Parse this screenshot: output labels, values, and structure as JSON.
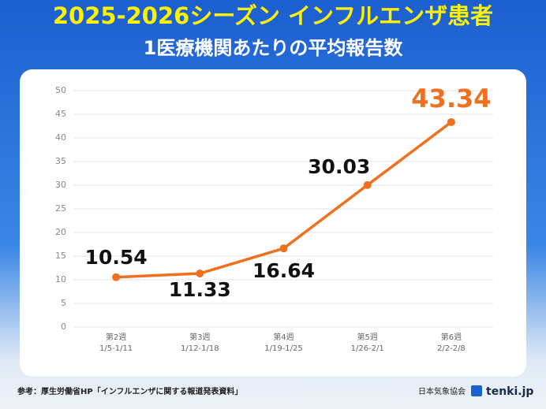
{
  "chart_data": {
    "type": "line",
    "title": "2025-2026シーズン インフルエンザ患者",
    "subtitle": "1医療機関あたりの平均報告数",
    "categories": [
      "第2週",
      "第3週",
      "第4週",
      "第5週",
      "第6週"
    ],
    "category_dates": [
      "1/5-1/11",
      "1/12-1/18",
      "1/19-1/25",
      "1/26-2/1",
      "2/2-2/8"
    ],
    "series": [
      {
        "name": "平均報告数",
        "color": "#f07020",
        "values": [
          10.54,
          11.33,
          16.64,
          30.03,
          43.34
        ]
      }
    ],
    "ylim": [
      0,
      50
    ],
    "yticks": [
      0,
      5,
      10,
      15,
      20,
      25,
      30,
      35,
      40,
      45,
      50
    ],
    "grid": true
  },
  "footer": {
    "source": "参考：厚生労働省HP「インフルエンザに関する報道発表資料」",
    "org": "日本気象協会",
    "brand": "tenki.jp"
  }
}
